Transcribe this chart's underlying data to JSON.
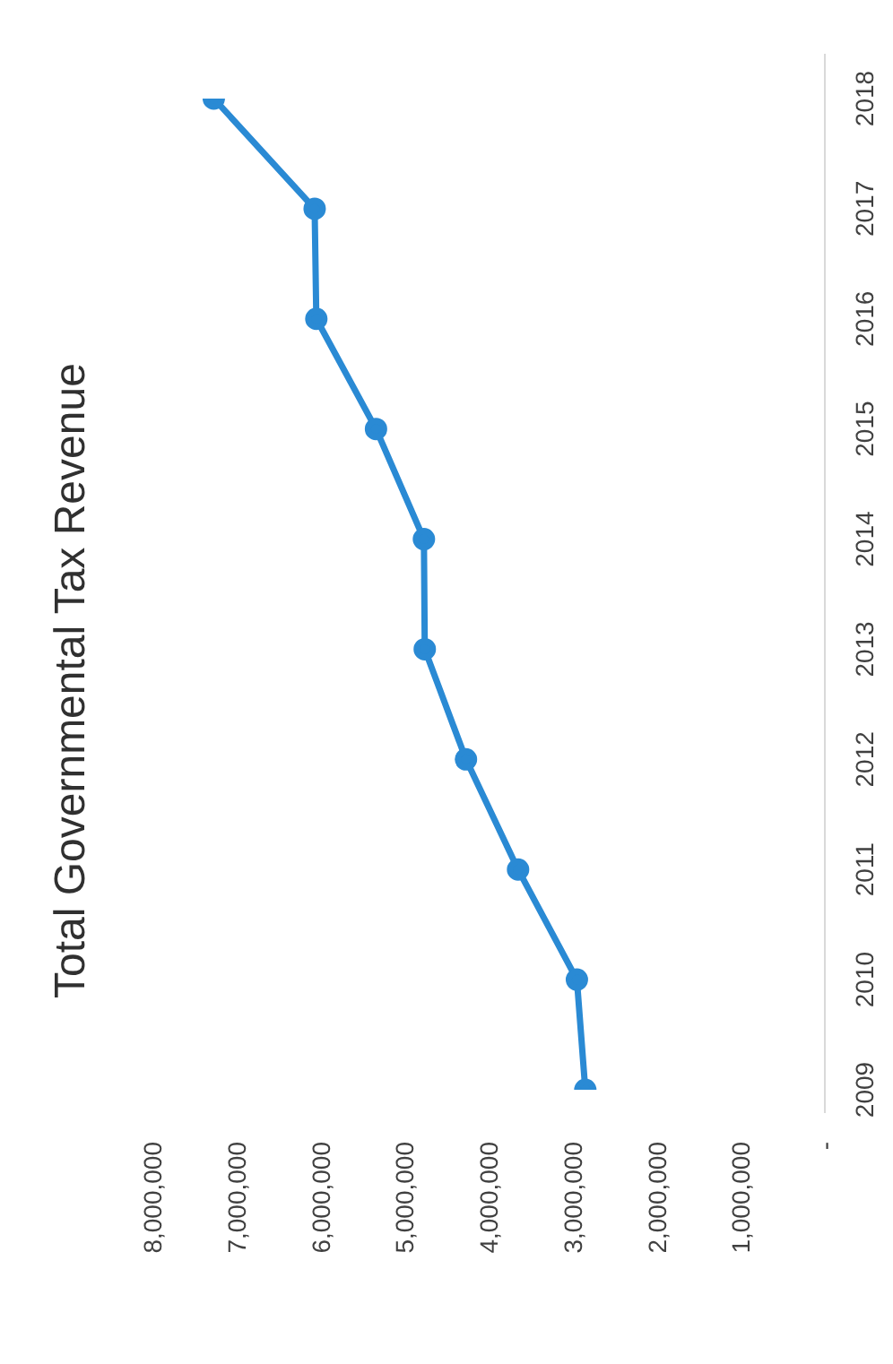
{
  "chart_data": {
    "type": "line",
    "title": "Total Governmental Tax Revenue",
    "orientation": "horizontal",
    "categories": [
      "2018",
      "2017",
      "2016",
      "2015",
      "2014",
      "2013",
      "2012",
      "2011",
      "2010",
      "2009"
    ],
    "series": [
      {
        "color": "#2a8ad4",
        "values": [
          7270000,
          6070000,
          6050000,
          5340000,
          4770000,
          4760000,
          4270000,
          3650000,
          2950000,
          2850000
        ]
      }
    ],
    "xlim": [
      8000000,
      0
    ],
    "xticks": [
      {
        "value": 0,
        "label": "-"
      },
      {
        "value": 1000000,
        "label": "1,000,000"
      },
      {
        "value": 2000000,
        "label": "2,000,000"
      },
      {
        "value": 3000000,
        "label": "3,000,000"
      },
      {
        "value": 4000000,
        "label": "4,000,000"
      },
      {
        "value": 5000000,
        "label": "5,000,000"
      },
      {
        "value": 6000000,
        "label": "6,000,000"
      },
      {
        "value": 7000000,
        "label": "7,000,000"
      },
      {
        "value": 8000000,
        "label": "8,000,000"
      }
    ],
    "grid": false,
    "legend": false,
    "marker": "circle",
    "line_style": "solid"
  }
}
